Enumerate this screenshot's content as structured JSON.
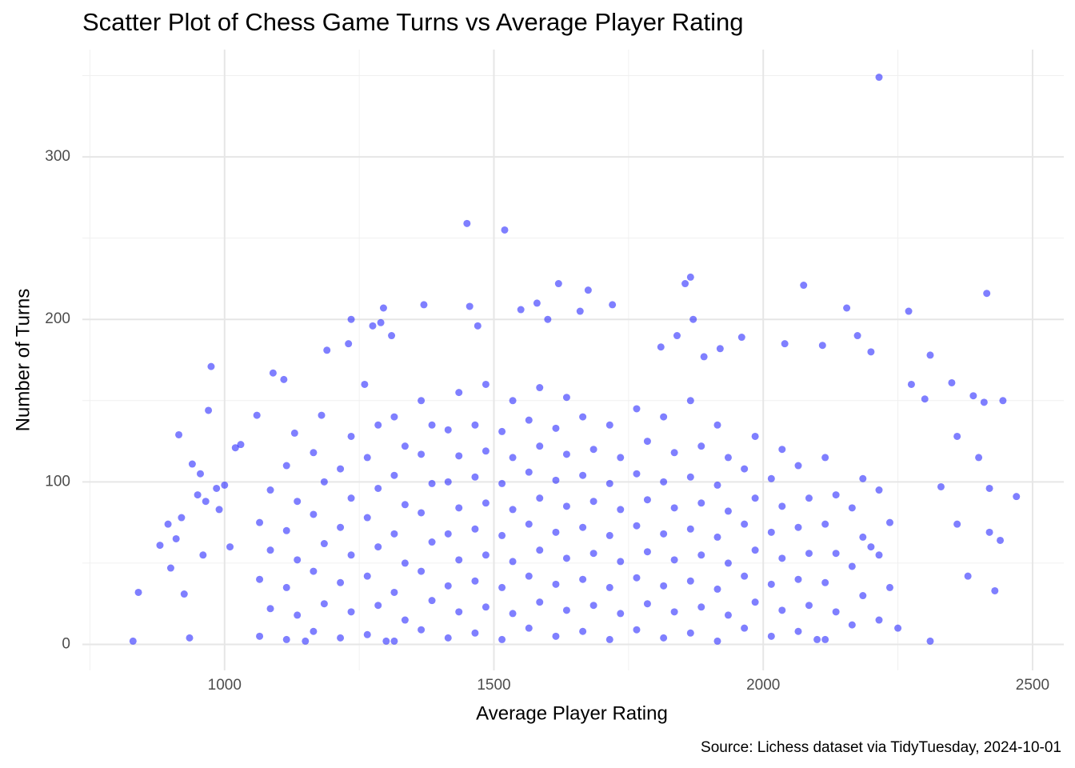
{
  "chart_data": {
    "type": "scatter",
    "title": "Scatter Plot of Chess Game Turns vs Average Player Rating",
    "x_label": "Average Player Rating",
    "y_label": "Number of Turns",
    "caption": "Source: Lichess dataset via TidyTuesday, 2024-10-01",
    "color": "#0000ff",
    "opacity": 0.5,
    "grid": true,
    "xlim": [
      736,
      2558
    ],
    "ylim": [
      -16,
      366
    ],
    "xticks": [
      1000,
      1500,
      2000,
      2500
    ],
    "yticks": [
      0,
      100,
      200,
      300
    ],
    "minor_xticks": [
      750,
      1250,
      1750,
      2250
    ],
    "minor_yticks": [
      50,
      150,
      250,
      350
    ],
    "x": [
      1065,
      1085,
      1065,
      1085,
      1065,
      1085,
      1115,
      1135,
      1115,
      1135,
      1115,
      1135,
      1115,
      1165,
      1185,
      1165,
      1185,
      1165,
      1185,
      1165,
      1215,
      1235,
      1215,
      1235,
      1215,
      1235,
      1215,
      1235,
      1265,
      1285,
      1265,
      1285,
      1265,
      1285,
      1265,
      1285,
      1315,
      1335,
      1315,
      1335,
      1315,
      1335,
      1315,
      1335,
      1315,
      1365,
      1385,
      1365,
      1385,
      1365,
      1385,
      1365,
      1385,
      1365,
      1415,
      1435,
      1415,
      1435,
      1415,
      1435,
      1415,
      1435,
      1415,
      1435,
      1465,
      1485,
      1465,
      1485,
      1465,
      1485,
      1465,
      1485,
      1465,
      1485,
      1515,
      1535,
      1515,
      1535,
      1515,
      1535,
      1515,
      1535,
      1515,
      1535,
      1565,
      1585,
      1565,
      1585,
      1565,
      1585,
      1565,
      1585,
      1565,
      1585,
      1615,
      1635,
      1615,
      1635,
      1615,
      1635,
      1615,
      1635,
      1615,
      1635,
      1665,
      1685,
      1665,
      1685,
      1665,
      1685,
      1665,
      1685,
      1665,
      1715,
      1735,
      1715,
      1735,
      1715,
      1735,
      1715,
      1735,
      1715,
      1765,
      1785,
      1765,
      1785,
      1765,
      1785,
      1765,
      1785,
      1765,
      1815,
      1835,
      1815,
      1835,
      1815,
      1835,
      1815,
      1835,
      1815,
      1865,
      1885,
      1865,
      1885,
      1865,
      1885,
      1865,
      1885,
      1865,
      1915,
      1935,
      1915,
      1935,
      1915,
      1935,
      1915,
      1935,
      1915,
      1965,
      1985,
      1965,
      1985,
      1965,
      1985,
      1965,
      1985,
      2015,
      2035,
      2015,
      2035,
      2015,
      2035,
      2015,
      2035,
      2065,
      2085,
      2065,
      2085,
      2065,
      2085,
      2065,
      2115,
      2135,
      2115,
      2135,
      2115,
      2135,
      2115,
      2165,
      2185,
      2165,
      2185,
      2165,
      2185,
      2215,
      2235,
      2215,
      2235,
      2215,
      830,
      840,
      880,
      895,
      900,
      910,
      915,
      920,
      925,
      935,
      940,
      950,
      955,
      960,
      965,
      970,
      975,
      985,
      990,
      1000,
      1010,
      1020,
      1030,
      1060,
      1090,
      1110,
      1130,
      1180,
      1190,
      1230,
      1235,
      1260,
      1275,
      1290,
      1295,
      1310,
      1370,
      1450,
      1455,
      1470,
      1520,
      1550,
      1580,
      1600,
      1620,
      1660,
      1675,
      1720,
      1810,
      1840,
      1855,
      1865,
      1870,
      1890,
      1920,
      1960,
      2040,
      2075,
      2110,
      2155,
      2175,
      2200,
      2215,
      2270,
      2275,
      2300,
      2310,
      2330,
      2350,
      2360,
      2390,
      2400,
      2410,
      2415,
      2420,
      2445,
      2470,
      2420,
      2430,
      2440,
      2380,
      2360,
      2310,
      2250,
      2200,
      2100,
      1300,
      1150
    ],
    "values": [
      5,
      22,
      40,
      58,
      75,
      95,
      3,
      18,
      35,
      52,
      70,
      88,
      110,
      8,
      25,
      45,
      62,
      80,
      100,
      118,
      4,
      20,
      38,
      55,
      72,
      90,
      108,
      128,
      6,
      24,
      42,
      60,
      78,
      96,
      115,
      135,
      2,
      15,
      32,
      50,
      68,
      86,
      104,
      122,
      140,
      9,
      27,
      45,
      63,
      81,
      99,
      117,
      135,
      150,
      4,
      20,
      36,
      52,
      68,
      84,
      100,
      116,
      132,
      155,
      7,
      23,
      39,
      55,
      71,
      87,
      103,
      119,
      135,
      160,
      3,
      19,
      35,
      51,
      67,
      83,
      99,
      115,
      131,
      150,
      10,
      26,
      42,
      58,
      74,
      90,
      106,
      122,
      138,
      158,
      5,
      21,
      37,
      53,
      69,
      85,
      101,
      117,
      133,
      152,
      8,
      24,
      40,
      56,
      72,
      88,
      104,
      120,
      140,
      3,
      19,
      35,
      51,
      67,
      83,
      99,
      115,
      135,
      9,
      25,
      41,
      57,
      73,
      89,
      105,
      125,
      145,
      4,
      20,
      36,
      52,
      68,
      84,
      100,
      118,
      140,
      7,
      23,
      39,
      55,
      71,
      87,
      103,
      122,
      150,
      2,
      18,
      34,
      50,
      66,
      82,
      98,
      115,
      135,
      10,
      26,
      42,
      58,
      74,
      90,
      108,
      128,
      5,
      21,
      37,
      53,
      69,
      85,
      102,
      120,
      8,
      24,
      40,
      56,
      72,
      90,
      110,
      3,
      20,
      38,
      56,
      74,
      92,
      115,
      12,
      30,
      48,
      66,
      84,
      102,
      15,
      35,
      55,
      75,
      95,
      2,
      32,
      61,
      74,
      47,
      65,
      129,
      78,
      31,
      4,
      111,
      92,
      105,
      55,
      88,
      144,
      171,
      96,
      83,
      98,
      60,
      121,
      123,
      141,
      167,
      163,
      130,
      141,
      181,
      185,
      200,
      160,
      196,
      198,
      207,
      190,
      209,
      259,
      208,
      196,
      255,
      206,
      210,
      200,
      222,
      205,
      218,
      209,
      183,
      190,
      222,
      226,
      200,
      177,
      182,
      189,
      185,
      221,
      184,
      207,
      190,
      180,
      349,
      205,
      160,
      151,
      178,
      97,
      161,
      128,
      153,
      115,
      149,
      216,
      96,
      150,
      91,
      69,
      33,
      64,
      42,
      74,
      2,
      10,
      60,
      3,
      2,
      2
    ]
  }
}
